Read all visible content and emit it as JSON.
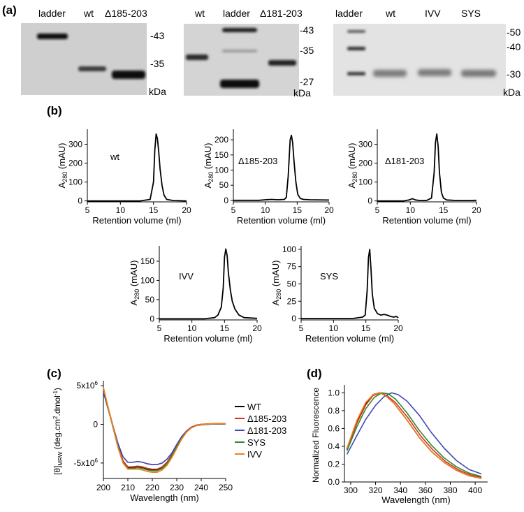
{
  "panel_labels": {
    "a": "(a)",
    "b": "(b)",
    "c": "(c)",
    "d": "(d)"
  },
  "gels": [
    {
      "lanes": [
        "ladder",
        "wt",
        "Δ185-203"
      ],
      "markers": [
        "-43",
        "-35"
      ],
      "unit": "kDa"
    },
    {
      "lanes": [
        "wt",
        "ladder",
        "Δ181-203"
      ],
      "markers": [
        "-43",
        "-35",
        "-27"
      ],
      "unit": "kDa"
    },
    {
      "lanes": [
        "ladder",
        "wt",
        "IVV",
        "SYS"
      ],
      "markers": [
        "-50",
        "-40",
        "-30"
      ],
      "unit": "kDa"
    }
  ],
  "chart_data": [
    {
      "type": "line",
      "panel": "b",
      "annotation": "wt",
      "xlabel": "Retention volume (ml)",
      "ylabel_main": "A",
      "ylabel_sub": "280",
      "ylabel_tail": " (mAU)",
      "xlim": [
        5,
        20
      ],
      "ylim": [
        -5,
        380
      ],
      "xticks": [
        5,
        10,
        15,
        20
      ],
      "yticks": [
        0,
        100,
        200,
        300
      ],
      "x": [
        5,
        13,
        14.5,
        15,
        15.2,
        15.4,
        15.6,
        15.8,
        16,
        16.3,
        16.6,
        17,
        18,
        20
      ],
      "y": [
        0,
        0,
        8,
        100,
        270,
        355,
        330,
        260,
        170,
        80,
        30,
        8,
        2,
        0
      ]
    },
    {
      "type": "line",
      "panel": "b",
      "annotation": "Δ185-203",
      "xlabel": "Retention volume (ml)",
      "ylabel_main": "A",
      "ylabel_sub": "280",
      "ylabel_tail": " (mAU)",
      "xlim": [
        5,
        20
      ],
      "ylim": [
        -5,
        235
      ],
      "xticks": [
        5,
        10,
        15,
        20
      ],
      "yticks": [
        0,
        50,
        100,
        150,
        200
      ],
      "x": [
        5,
        9,
        10,
        11,
        12,
        13,
        13.3,
        13.6,
        13.9,
        14.1,
        14.3,
        14.5,
        14.8,
        15.1,
        15.5,
        16,
        17,
        20
      ],
      "y": [
        0,
        0,
        2,
        3,
        2,
        3,
        10,
        80,
        200,
        215,
        190,
        130,
        60,
        20,
        6,
        3,
        2,
        1
      ]
    },
    {
      "type": "line",
      "panel": "b",
      "annotation": "Δ181-203",
      "xlabel": "Retention volume (ml)",
      "ylabel_main": "A",
      "ylabel_sub": "280",
      "ylabel_tail": " (mAU)",
      "xlim": [
        5,
        20
      ],
      "ylim": [
        -5,
        380
      ],
      "xticks": [
        5,
        10,
        15,
        20
      ],
      "yticks": [
        0,
        100,
        200,
        300
      ],
      "x": [
        5,
        9,
        9.8,
        10.3,
        10.8,
        11.5,
        12.5,
        13.2,
        13.6,
        13.8,
        14,
        14.2,
        14.4,
        14.7,
        15,
        15.5,
        16.5,
        18,
        20
      ],
      "y": [
        0,
        0,
        5,
        12,
        5,
        2,
        3,
        15,
        150,
        310,
        355,
        290,
        150,
        45,
        15,
        5,
        3,
        2,
        3
      ]
    },
    {
      "type": "line",
      "panel": "b",
      "annotation": "IVV",
      "xlabel": "Retention volume (ml)",
      "ylabel_main": "A",
      "ylabel_sub": "280",
      "ylabel_tail": " (mAU)",
      "xlim": [
        5,
        20
      ],
      "ylim": [
        -3,
        190
      ],
      "xticks": [
        5,
        10,
        15,
        20
      ],
      "yticks": [
        0,
        50,
        100,
        150
      ],
      "x": [
        5,
        12,
        13.5,
        14,
        14.5,
        14.8,
        15,
        15.2,
        15.4,
        15.6,
        15.9,
        16.2,
        16.6,
        17.2,
        18,
        20
      ],
      "y": [
        0,
        0,
        3,
        10,
        30,
        80,
        160,
        182,
        165,
        120,
        75,
        45,
        25,
        10,
        3,
        1
      ]
    },
    {
      "type": "line",
      "panel": "b",
      "annotation": "SYS",
      "xlabel": "Retention volume (ml)",
      "ylabel_main": "A",
      "ylabel_sub": "280",
      "ylabel_tail": " (mAU)",
      "xlim": [
        5,
        20
      ],
      "ylim": [
        -2,
        105
      ],
      "xticks": [
        5,
        10,
        15,
        20
      ],
      "yticks": [
        0,
        25,
        50,
        75,
        100
      ],
      "x": [
        5,
        13,
        14.5,
        14.9,
        15.2,
        15.4,
        15.6,
        15.8,
        16,
        16.3,
        16.8,
        17.3,
        17.8,
        18.3,
        18.8,
        19.3,
        19.7,
        20
      ],
      "y": [
        0,
        0,
        2,
        5,
        40,
        88,
        100,
        70,
        35,
        15,
        7,
        5,
        6,
        5,
        3,
        2,
        3,
        1
      ]
    },
    {
      "type": "line",
      "panel": "c",
      "xlabel": "Wavelength (nm)",
      "ylabel": "[θ]MRW (deg.cm2.dmol-1)",
      "xlim": [
        200,
        250
      ],
      "ylim": [
        -7000000,
        5200000
      ],
      "xticks": [
        200,
        210,
        220,
        230,
        240,
        250
      ],
      "yticks": [
        {
          "value": 5000000,
          "label": "5x10",
          "exp": "6"
        },
        {
          "value": 0,
          "label": "0",
          "exp": ""
        },
        {
          "value": -5000000,
          "label": "-5x10",
          "exp": "6"
        }
      ],
      "x": [
        200,
        202,
        204,
        206,
        208,
        210,
        212,
        214,
        216,
        218,
        220,
        222,
        224,
        226,
        228,
        230,
        232,
        234,
        236,
        238,
        240,
        242,
        244,
        246,
        248,
        250
      ],
      "series": [
        {
          "name": "WT",
          "color": "#000000",
          "values": [
            4500000,
            2000000,
            -400000,
            -2900000,
            -4800000,
            -5600000,
            -5600000,
            -5500000,
            -5600000,
            -5800000,
            -5900000,
            -5900000,
            -5600000,
            -5000000,
            -4000000,
            -2800000,
            -1700000,
            -900000,
            -400000,
            -150000,
            -50000,
            0,
            30000,
            50000,
            60000,
            70000
          ]
        },
        {
          "name": "Δ185-203",
          "color": "#d7301f",
          "values": [
            4600000,
            2100000,
            -300000,
            -2800000,
            -4700000,
            -5500000,
            -5500000,
            -5400000,
            -5500000,
            -5700000,
            -5800000,
            -5800000,
            -5500000,
            -4900000,
            -3900000,
            -2700000,
            -1600000,
            -850000,
            -350000,
            -100000,
            0,
            50000,
            80000,
            100000,
            110000,
            120000
          ]
        },
        {
          "name": "Δ181-203",
          "color": "#3f48b5",
          "values": [
            4200000,
            1900000,
            -300000,
            -2500000,
            -4200000,
            -4900000,
            -4900000,
            -4800000,
            -4900000,
            -5100000,
            -5200000,
            -5200000,
            -5000000,
            -4500000,
            -3700000,
            -2600000,
            -1600000,
            -900000,
            -400000,
            -150000,
            -50000,
            0,
            20000,
            40000,
            50000,
            60000
          ]
        },
        {
          "name": "SYS",
          "color": "#2e8b2e",
          "values": [
            4700000,
            2000000,
            -500000,
            -3000000,
            -4900000,
            -5700000,
            -5700000,
            -5600000,
            -5700000,
            -5900000,
            -6000000,
            -6000000,
            -5700000,
            -5100000,
            -4100000,
            -2900000,
            -1800000,
            -950000,
            -450000,
            -150000,
            -30000,
            20000,
            50000,
            70000,
            80000,
            90000
          ]
        },
        {
          "name": "IVV",
          "color": "#f07f1e",
          "values": [
            4800000,
            2100000,
            -400000,
            -3000000,
            -5000000,
            -5800000,
            -5800000,
            -5800000,
            -5900000,
            -6100000,
            -6200000,
            -6200000,
            -5900000,
            -5300000,
            -4300000,
            -3100000,
            -1900000,
            -1000000,
            -450000,
            -150000,
            -30000,
            30000,
            60000,
            80000,
            90000,
            100000
          ]
        }
      ]
    },
    {
      "type": "line",
      "panel": "d",
      "xlabel": "Wavelength (nm)",
      "ylabel": "Normalized Fluorescence",
      "xlim": [
        295,
        410
      ],
      "ylim": [
        0,
        1.05
      ],
      "xticks": [
        300,
        320,
        340,
        360,
        380,
        400
      ],
      "yticks": [
        0.0,
        0.2,
        0.4,
        0.6,
        0.8,
        1.0
      ],
      "series": [
        {
          "name": "WT",
          "color": "#000000",
          "x": [
            297,
            305,
            312,
            318,
            323,
            328,
            335,
            345,
            355,
            365,
            375,
            385,
            395,
            405
          ],
          "y": [
            0.37,
            0.68,
            0.88,
            0.98,
            1.0,
            0.97,
            0.88,
            0.7,
            0.5,
            0.34,
            0.22,
            0.13,
            0.07,
            0.04
          ]
        },
        {
          "name": "Δ185-203",
          "color": "#d7301f",
          "x": [
            297,
            305,
            312,
            318,
            324,
            329,
            336,
            346,
            356,
            366,
            376,
            386,
            396,
            405
          ],
          "y": [
            0.36,
            0.66,
            0.86,
            0.97,
            1.0,
            0.97,
            0.89,
            0.72,
            0.52,
            0.36,
            0.23,
            0.14,
            0.08,
            0.05
          ]
        },
        {
          "name": "Δ181-203",
          "color": "#3f48b5",
          "x": [
            297,
            305,
            312,
            320,
            327,
            333,
            338,
            345,
            355,
            365,
            375,
            385,
            395,
            405
          ],
          "y": [
            0.31,
            0.52,
            0.7,
            0.86,
            0.96,
            1.0,
            0.98,
            0.91,
            0.75,
            0.55,
            0.38,
            0.24,
            0.14,
            0.09
          ]
        },
        {
          "name": "SYS",
          "color": "#2e8b2e",
          "x": [
            297,
            305,
            312,
            319,
            325,
            330,
            336,
            345,
            355,
            365,
            375,
            385,
            395,
            405
          ],
          "y": [
            0.35,
            0.62,
            0.82,
            0.95,
            1.0,
            0.99,
            0.93,
            0.78,
            0.58,
            0.41,
            0.27,
            0.17,
            0.1,
            0.06
          ]
        },
        {
          "name": "IVV",
          "color": "#f07f1e",
          "x": [
            297,
            305,
            312,
            318,
            323,
            328,
            335,
            345,
            355,
            365,
            375,
            385,
            395,
            405
          ],
          "y": [
            0.38,
            0.69,
            0.89,
            0.98,
            1.0,
            0.97,
            0.88,
            0.7,
            0.5,
            0.34,
            0.22,
            0.13,
            0.07,
            0.04
          ]
        }
      ]
    }
  ]
}
